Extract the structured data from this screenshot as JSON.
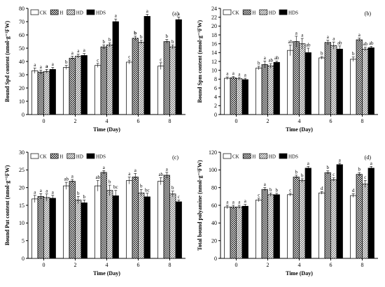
{
  "legend": {
    "CK": "CK",
    "H": "H",
    "HD": "HD",
    "HDS": "HDS"
  },
  "chart_data": [
    {
      "id": "a",
      "type": "bar",
      "panel_label": "(a)",
      "xlabel": "Time (Day)",
      "ylabel": "Bound Spd content (nmol·g⁻¹FW)",
      "categories": [
        "0",
        "2",
        "4",
        "6",
        "8"
      ],
      "ylim": [
        0,
        80
      ],
      "yticks": [
        0,
        10,
        20,
        30,
        40,
        50,
        60,
        70,
        80
      ],
      "series": [
        {
          "name": "CK",
          "values": [
            33,
            35.5,
            37,
            39.5,
            36.5
          ],
          "errors": [
            2,
            1.5,
            1.5,
            1.5,
            2.5
          ]
        },
        {
          "name": "H",
          "values": [
            32,
            42.5,
            51,
            57.5,
            55
          ],
          "errors": [
            1.5,
            1.5,
            1.5,
            1.5,
            1.5
          ]
        },
        {
          "name": "HD",
          "values": [
            32.5,
            44,
            52.5,
            54.5,
            51
          ],
          "errors": [
            1.5,
            1.5,
            1.5,
            1.5,
            1.5
          ]
        },
        {
          "name": "HDS",
          "values": [
            34,
            44.5,
            70,
            74,
            71.5
          ],
          "errors": [
            1.5,
            1.5,
            2,
            1.5,
            2
          ]
        }
      ],
      "letters": [
        [
          {
            "t": "a",
            "b": false
          },
          {
            "t": "a",
            "b": false
          },
          {
            "t": "a",
            "b": true
          },
          {
            "t": "a",
            "b": false
          }
        ],
        [
          {
            "t": "b",
            "b": false
          },
          {
            "t": "a",
            "b": false
          },
          {
            "t": "a",
            "b": false
          },
          {
            "t": "a",
            "b": false
          }
        ],
        [
          {
            "t": "c",
            "b": false
          },
          {
            "t": "b",
            "b": false
          },
          {
            "t": "b",
            "b": false
          },
          {
            "t": "a",
            "b": false
          }
        ],
        [
          {
            "t": "c",
            "b": false
          },
          {
            "t": "b",
            "b": true
          },
          {
            "t": "b",
            "b": false
          },
          {
            "t": "a",
            "b": false
          }
        ],
        [
          {
            "t": "c",
            "b": false
          },
          {
            "t": "b",
            "b": false
          },
          {
            "t": "b",
            "b": false
          },
          {
            "t": "a",
            "b": false
          }
        ]
      ]
    },
    {
      "id": "b",
      "type": "bar",
      "panel_label": "(b)",
      "xlabel": "Time (Day)",
      "ylabel": "Bound Spm content (nmol·g⁻¹FW)",
      "categories": [
        "0",
        "2",
        "4",
        "6",
        "8"
      ],
      "ylim": [
        0,
        24
      ],
      "yticks": [
        0,
        2,
        4,
        6,
        8,
        10,
        12,
        14,
        16,
        18,
        20,
        22,
        24
      ],
      "series": [
        {
          "name": "CK",
          "values": [
            8.2,
            10.5,
            14.5,
            12.8,
            12.5
          ],
          "errors": [
            0.3,
            0.4,
            1.2,
            0.3,
            0.5
          ]
        },
        {
          "name": "H",
          "values": [
            8.3,
            11.3,
            16.5,
            16.3,
            16.9
          ],
          "errors": [
            0.3,
            0.8,
            1.2,
            0.5,
            0.4
          ]
        },
        {
          "name": "HD",
          "values": [
            8.1,
            11,
            16,
            15.6,
            14.8
          ],
          "errors": [
            0.3,
            0.5,
            1.2,
            0.8,
            0.4
          ]
        },
        {
          "name": "HDS",
          "values": [
            7.9,
            11.8,
            14,
            14.8,
            15.1
          ],
          "errors": [
            0.3,
            0.3,
            1,
            0.7,
            0.3
          ]
        }
      ],
      "letters": [
        [
          {
            "t": "a",
            "b": false
          },
          {
            "t": "a",
            "b": false
          },
          {
            "t": "a",
            "b": false
          },
          {
            "t": "a",
            "b": false
          }
        ],
        [
          {
            "t": "b",
            "b": false
          },
          {
            "t": "a",
            "b": false
          },
          {
            "t": "ab",
            "b": false
          },
          {
            "t": "ab",
            "b": false
          }
        ],
        [
          {
            "t": "ab",
            "b": false
          },
          {
            "t": "a",
            "b": false
          },
          {
            "t": "a",
            "b": false
          },
          {
            "t": "ab",
            "b": false
          }
        ],
        [
          {
            "t": "b",
            "b": false
          },
          {
            "t": "a",
            "b": false
          },
          {
            "t": "a",
            "b": false
          },
          {
            "t": "ab",
            "b": false
          }
        ],
        [
          {
            "t": "b",
            "b": false
          },
          {
            "t": "a",
            "b": false
          },
          {
            "t": "ab",
            "b": false
          },
          {
            "t": "ab",
            "b": false
          }
        ]
      ]
    },
    {
      "id": "c",
      "type": "bar",
      "panel_label": "(c)",
      "xlabel": "Time (Day)",
      "ylabel": "Bound Put content (nmol·g⁻¹FW)",
      "categories": [
        "0",
        "2",
        "4",
        "6",
        "8"
      ],
      "ylim": [
        0,
        30
      ],
      "yticks": [
        0,
        5,
        10,
        15,
        20,
        25,
        30
      ],
      "series": [
        {
          "name": "CK",
          "values": [
            16.8,
            20.5,
            20.5,
            22,
            21.8
          ],
          "errors": [
            1,
            1,
            1.5,
            1,
            1
          ]
        },
        {
          "name": "H",
          "values": [
            17.5,
            21.8,
            24.3,
            23,
            23.5
          ],
          "errors": [
            0.8,
            0.5,
            0.5,
            1,
            0.8
          ]
        },
        {
          "name": "HD",
          "values": [
            17.2,
            16.5,
            19.2,
            18.5,
            18.2
          ],
          "errors": [
            1,
            1,
            1.5,
            1,
            0.8
          ]
        },
        {
          "name": "HDS",
          "values": [
            17,
            15.7,
            17.7,
            17.4,
            16
          ],
          "errors": [
            0.8,
            0.8,
            1.5,
            1,
            0.5
          ]
        }
      ],
      "letters": [
        [
          {
            "t": "a",
            "b": false
          },
          {
            "t": "a",
            "b": false
          },
          {
            "t": "a",
            "b": false
          },
          {
            "t": "a",
            "b": false
          }
        ],
        [
          {
            "t": "ab",
            "b": false
          },
          {
            "t": "a",
            "b": false
          },
          {
            "t": "b",
            "b": false
          },
          {
            "t": "b",
            "b": false
          }
        ],
        [
          {
            "t": "ab",
            "b": false
          },
          {
            "t": "a",
            "b": false
          },
          {
            "t": "b",
            "b": false
          },
          {
            "t": "bc",
            "b": false
          }
        ],
        [
          {
            "t": "a",
            "b": false
          },
          {
            "t": "a",
            "b": false
          },
          {
            "t": "b",
            "b": false
          },
          {
            "t": "bc",
            "b": false
          }
        ],
        [
          {
            "t": "ab",
            "b": false
          },
          {
            "t": "a",
            "b": false
          },
          {
            "t": "b",
            "b": false
          },
          {
            "t": "c",
            "b": false
          }
        ]
      ]
    },
    {
      "id": "d",
      "type": "bar",
      "panel_label": "(d)",
      "xlabel": "Time (Day)",
      "ylabel": "Total bound polyamine (nmol·g⁻¹FW)",
      "categories": [
        "0",
        "2",
        "4",
        "6",
        "8"
      ],
      "ylim": [
        0,
        120
      ],
      "yticks": [
        0,
        20,
        40,
        60,
        80,
        100,
        120
      ],
      "series": [
        {
          "name": "CK",
          "values": [
            58,
            66,
            72,
            74,
            71
          ],
          "errors": [
            2,
            2,
            1.5,
            1.5,
            2
          ]
        },
        {
          "name": "H",
          "values": [
            58,
            78,
            92,
            97,
            95
          ],
          "errors": [
            2,
            2,
            2,
            2,
            2
          ]
        },
        {
          "name": "HD",
          "values": [
            58,
            72,
            88,
            89,
            84
          ],
          "errors": [
            2,
            2,
            2,
            2,
            4
          ]
        },
        {
          "name": "HDS",
          "values": [
            59,
            72,
            102,
            106,
            102
          ],
          "errors": [
            2,
            1.5,
            2,
            1.5,
            2
          ]
        }
      ],
      "letters": [
        [
          {
            "t": "a",
            "b": false
          },
          {
            "t": "a",
            "b": false
          },
          {
            "t": "a",
            "b": false
          },
          {
            "t": "a",
            "b": false
          }
        ],
        [
          {
            "t": "c",
            "b": false
          },
          {
            "t": "a",
            "b": false
          },
          {
            "t": "b",
            "b": false
          },
          {
            "t": "b",
            "b": false
          }
        ],
        [
          {
            "t": "c",
            "b": false
          },
          {
            "t": "b",
            "b": false
          },
          {
            "t": "b",
            "b": false
          },
          {
            "t": "a",
            "b": false
          }
        ],
        [
          {
            "t": "d",
            "b": false
          },
          {
            "t": "b",
            "b": false
          },
          {
            "t": "c",
            "b": false
          },
          {
            "t": "a",
            "b": false
          }
        ],
        [
          {
            "t": "d",
            "b": false
          },
          {
            "t": "b",
            "b": false
          },
          {
            "t": "c",
            "b": false
          },
          {
            "t": "a",
            "b": false
          }
        ]
      ]
    }
  ]
}
